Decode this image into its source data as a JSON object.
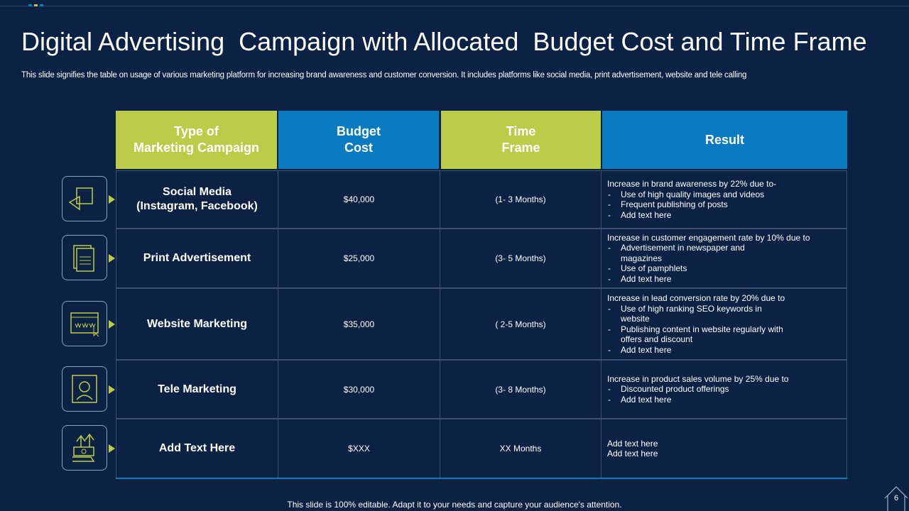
{
  "title": "Digital Advertising  Campaign with Allocated  Budget Cost and Time Frame",
  "subtitle": "This slide signifies the table on usage of various marketing platform for increasing brand awareness and customer conversion. It includes platforms like social media, print advertisement, website and tele calling",
  "table": {
    "headers": [
      [
        "Type of",
        "Marketing Campaign"
      ],
      [
        "Budget",
        "Cost"
      ],
      [
        "Time",
        "Frame"
      ],
      [
        "Result"
      ]
    ],
    "rows": [
      {
        "campaign": [
          "Social Media",
          "(Instagram, Facebook)"
        ],
        "budget": "$40,000",
        "time": "(1- 3 Months)",
        "result": {
          "intro": "Increase in brand awareness by 22% due to-",
          "items": [
            "Use of high quality images and videos",
            "Frequent publishing of posts",
            "Add text here"
          ]
        }
      },
      {
        "campaign": [
          "Print Advertisement"
        ],
        "budget": "$25,000",
        "time": "(3- 5 Months)",
        "result": {
          "intro": "Increase in customer engagement rate by 10% due to",
          "items": [
            "Advertisement in newspaper and magazines",
            "Use of pamphlets",
            "Add text here"
          ]
        }
      },
      {
        "campaign": [
          "Website Marketing"
        ],
        "budget": "$35,000",
        "time": "( 2-5 Months)",
        "result": {
          "intro": "Increase in lead conversion rate by 20% due to",
          "items": [
            "Use of high ranking SEO keywords in website",
            "Publishing content in website regularly with offers and discount",
            "Add text here"
          ]
        }
      },
      {
        "campaign": [
          "Tele Marketing"
        ],
        "budget": "$30,000",
        "time": "(3- 8 Months)",
        "result": {
          "intro": "Increase in product sales volume by 25% due to",
          "items": [
            "Discounted product offerings",
            "Add text here"
          ]
        }
      },
      {
        "campaign": [
          "Add  Text Here"
        ],
        "budget": "$XXX",
        "time": "XX Months",
        "result": {
          "lines": [
            "Add text here",
            "Add text here"
          ]
        }
      }
    ]
  },
  "footer": "This slide is 100% editable. Adapt it to your needs and capture your audience's attention.",
  "page_number": "6"
}
